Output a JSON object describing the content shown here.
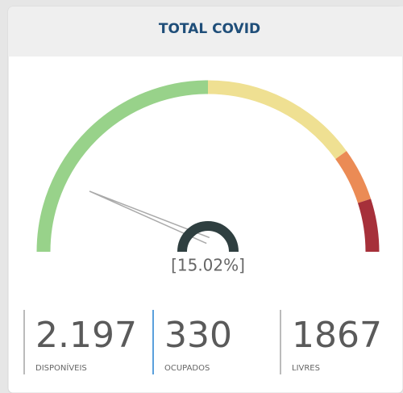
{
  "chart_data": {
    "type": "gauge",
    "title": "TOTAL COVID",
    "value": 15.02,
    "value_label": "[15.02%]",
    "ylim": [
      0,
      100
    ],
    "bands": [
      {
        "from": 0,
        "to": 50,
        "color": "#98d28a"
      },
      {
        "from": 50,
        "to": 80,
        "color": "#efe092"
      },
      {
        "from": 80,
        "to": 90,
        "color": "#eb8b55"
      },
      {
        "from": 90,
        "to": 100,
        "color": "#a6303a"
      }
    ]
  },
  "stats": [
    {
      "value": "2.197",
      "label": "DISPONÍVEIS",
      "color": "#bbbbbb"
    },
    {
      "value": "330",
      "label": "OCUPADOS",
      "color": "#5aa0dc"
    },
    {
      "value": "1867",
      "label": "LIVRES",
      "color": "#bbbbbb"
    }
  ]
}
